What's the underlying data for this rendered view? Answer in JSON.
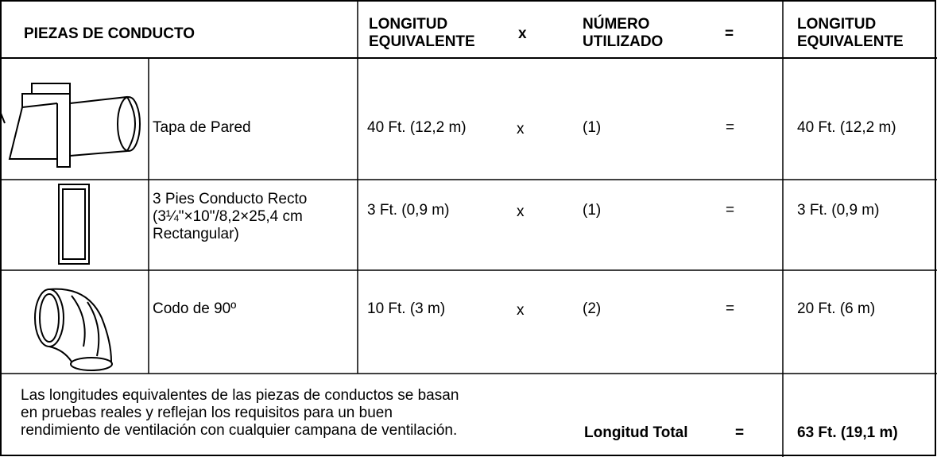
{
  "header": {
    "columns": [
      [
        "PIEZAS DE CONDUCTO"
      ],
      [
        "LONGITUD",
        "EQUIVALENTE"
      ],
      [
        "x"
      ],
      [
        "NÚMERO",
        "UTILIZADO"
      ],
      [
        "="
      ],
      [
        "LONGITUD",
        "EQUIVALENTE"
      ]
    ]
  },
  "rows": [
    {
      "name": [
        "Tapa de Pared"
      ],
      "length": "40 Ft. (12,2 m)",
      "times": "x",
      "count": "(1)",
      "equals": "=",
      "total": "40 Ft. (12,2 m)"
    },
    {
      "name": [
        "3 Pies Conducto Recto",
        "(3¼\"×10\"/8,2×25,4 cm",
        "Rectangular)"
      ],
      "length": "3 Ft. (0,9 m)",
      "times": "x",
      "count": "(1)",
      "equals": "=",
      "total": "3 Ft. (0,9 m)"
    },
    {
      "name": [
        "Codo de 90º"
      ],
      "length": "10 Ft. (3 m)",
      "times": "x",
      "count": "(2)",
      "equals": "=",
      "total": "20 Ft. (6 m)"
    }
  ],
  "footer": {
    "note": [
      "Las longitudes equivalentes de las piezas de conductos se basan",
      "en pruebas reales y reflejan los requisitos para un buen",
      "rendimiento de ventilación con cualquier campana de ventilación."
    ],
    "total_label": "Longitud Total",
    "equals": "=",
    "total": "63 Ft. (19,1 m)"
  }
}
